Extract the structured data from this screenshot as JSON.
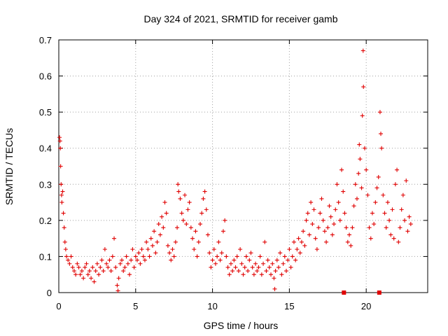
{
  "chart_data": {
    "type": "scatter",
    "title": "Day 324 of 2021, SRMTID for receiver gamb",
    "xlabel": "GPS time / hours",
    "ylabel": "SRMTID / TECUs",
    "xlim": [
      0,
      24
    ],
    "ylim": [
      0,
      0.7
    ],
    "xticks": [
      0,
      5,
      10,
      15,
      20
    ],
    "xtick_labels": [
      "0",
      "5",
      "10",
      "15",
      "20"
    ],
    "yticks": [
      0,
      0.1,
      0.2,
      0.3,
      0.4,
      0.5,
      0.6,
      0.7
    ],
    "ytick_labels": [
      "0",
      "0.1",
      "0.2",
      "0.3",
      "0.4",
      "0.5",
      "0.6",
      "0.7"
    ],
    "grid": true,
    "marker": "+",
    "color": "#e00000",
    "series": [
      {
        "name": "SRMTID",
        "points": [
          [
            0.05,
            0.43
          ],
          [
            0.08,
            0.42
          ],
          [
            0.1,
            0.4
          ],
          [
            0.12,
            0.35
          ],
          [
            0.15,
            0.3
          ],
          [
            0.18,
            0.27
          ],
          [
            0.2,
            0.25
          ],
          [
            0.25,
            0.28
          ],
          [
            0.3,
            0.22
          ],
          [
            0.35,
            0.18
          ],
          [
            0.4,
            0.14
          ],
          [
            0.45,
            0.12
          ],
          [
            0.5,
            0.1
          ],
          [
            0.6,
            0.09
          ],
          [
            0.7,
            0.08
          ],
          [
            0.8,
            0.1
          ],
          [
            0.9,
            0.07
          ],
          [
            1.0,
            0.06
          ],
          [
            1.1,
            0.05
          ],
          [
            1.2,
            0.08
          ],
          [
            1.3,
            0.07
          ],
          [
            1.4,
            0.05
          ],
          [
            1.5,
            0.06
          ],
          [
            1.6,
            0.04
          ],
          [
            1.7,
            0.07
          ],
          [
            1.8,
            0.08
          ],
          [
            1.9,
            0.05
          ],
          [
            2.0,
            0.06
          ],
          [
            2.1,
            0.04
          ],
          [
            2.2,
            0.07
          ],
          [
            2.3,
            0.03
          ],
          [
            2.4,
            0.06
          ],
          [
            2.5,
            0.08
          ],
          [
            2.6,
            0.05
          ],
          [
            2.7,
            0.07
          ],
          [
            2.8,
            0.09
          ],
          [
            2.9,
            0.06
          ],
          [
            3.0,
            0.12
          ],
          [
            3.1,
            0.08
          ],
          [
            3.2,
            0.07
          ],
          [
            3.3,
            0.09
          ],
          [
            3.4,
            0.06
          ],
          [
            3.5,
            0.1
          ],
          [
            3.6,
            0.15
          ],
          [
            3.7,
            0.07
          ],
          [
            3.8,
            0.02
          ],
          [
            3.85,
            0.005
          ],
          [
            3.9,
            0.04
          ],
          [
            4.0,
            0.08
          ],
          [
            4.1,
            0.09
          ],
          [
            4.2,
            0.06
          ],
          [
            4.3,
            0.07
          ],
          [
            4.4,
            0.1
          ],
          [
            4.5,
            0.08
          ],
          [
            4.6,
            0.05
          ],
          [
            4.7,
            0.09
          ],
          [
            4.8,
            0.12
          ],
          [
            4.9,
            0.07
          ],
          [
            5.0,
            0.1
          ],
          [
            5.1,
            0.09
          ],
          [
            5.2,
            0.11
          ],
          [
            5.3,
            0.08
          ],
          [
            5.4,
            0.12
          ],
          [
            5.5,
            0.1
          ],
          [
            5.6,
            0.09
          ],
          [
            5.7,
            0.14
          ],
          [
            5.8,
            0.12
          ],
          [
            5.9,
            0.1
          ],
          [
            6.0,
            0.15
          ],
          [
            6.1,
            0.13
          ],
          [
            6.2,
            0.17
          ],
          [
            6.3,
            0.11
          ],
          [
            6.4,
            0.14
          ],
          [
            6.5,
            0.19
          ],
          [
            6.6,
            0.16
          ],
          [
            6.7,
            0.21
          ],
          [
            6.8,
            0.18
          ],
          [
            6.9,
            0.25
          ],
          [
            7.0,
            0.22
          ],
          [
            7.1,
            0.13
          ],
          [
            7.2,
            0.11
          ],
          [
            7.3,
            0.09
          ],
          [
            7.4,
            0.12
          ],
          [
            7.5,
            0.1
          ],
          [
            7.6,
            0.14
          ],
          [
            7.7,
            0.18
          ],
          [
            7.75,
            0.3
          ],
          [
            7.8,
            0.28
          ],
          [
            7.9,
            0.26
          ],
          [
            8.0,
            0.22
          ],
          [
            8.1,
            0.2
          ],
          [
            8.2,
            0.27
          ],
          [
            8.3,
            0.19
          ],
          [
            8.4,
            0.23
          ],
          [
            8.5,
            0.25
          ],
          [
            8.6,
            0.18
          ],
          [
            8.7,
            0.15
          ],
          [
            8.8,
            0.12
          ],
          [
            8.9,
            0.17
          ],
          [
            9.0,
            0.1
          ],
          [
            9.1,
            0.14
          ],
          [
            9.2,
            0.19
          ],
          [
            9.3,
            0.22
          ],
          [
            9.4,
            0.26
          ],
          [
            9.5,
            0.28
          ],
          [
            9.6,
            0.23
          ],
          [
            9.7,
            0.16
          ],
          [
            9.8,
            0.11
          ],
          [
            9.9,
            0.07
          ],
          [
            10.0,
            0.09
          ],
          [
            10.1,
            0.12
          ],
          [
            10.2,
            0.08
          ],
          [
            10.3,
            0.1
          ],
          [
            10.4,
            0.14
          ],
          [
            10.5,
            0.09
          ],
          [
            10.6,
            0.11
          ],
          [
            10.7,
            0.17
          ],
          [
            10.8,
            0.2
          ],
          [
            10.9,
            0.1
          ],
          [
            11.0,
            0.07
          ],
          [
            11.1,
            0.05
          ],
          [
            11.2,
            0.08
          ],
          [
            11.3,
            0.06
          ],
          [
            11.4,
            0.09
          ],
          [
            11.5,
            0.07
          ],
          [
            11.6,
            0.1
          ],
          [
            11.7,
            0.06
          ],
          [
            11.8,
            0.12
          ],
          [
            11.9,
            0.08
          ],
          [
            12.0,
            0.05
          ],
          [
            12.1,
            0.07
          ],
          [
            12.2,
            0.1
          ],
          [
            12.3,
            0.06
          ],
          [
            12.4,
            0.09
          ],
          [
            12.5,
            0.11
          ],
          [
            12.6,
            0.07
          ],
          [
            12.7,
            0.05
          ],
          [
            12.8,
            0.08
          ],
          [
            12.9,
            0.06
          ],
          [
            13.0,
            0.07
          ],
          [
            13.1,
            0.1
          ],
          [
            13.2,
            0.05
          ],
          [
            13.3,
            0.08
          ],
          [
            13.4,
            0.14
          ],
          [
            13.5,
            0.06
          ],
          [
            13.6,
            0.09
          ],
          [
            13.7,
            0.07
          ],
          [
            13.8,
            0.05
          ],
          [
            13.9,
            0.08
          ],
          [
            14.0,
            0.04
          ],
          [
            14.05,
            0.01
          ],
          [
            14.1,
            0.06
          ],
          [
            14.2,
            0.09
          ],
          [
            14.3,
            0.07
          ],
          [
            14.4,
            0.11
          ],
          [
            14.5,
            0.05
          ],
          [
            14.6,
            0.08
          ],
          [
            14.7,
            0.1
          ],
          [
            14.8,
            0.06
          ],
          [
            14.9,
            0.09
          ],
          [
            15.0,
            0.12
          ],
          [
            15.1,
            0.07
          ],
          [
            15.2,
            0.1
          ],
          [
            15.3,
            0.14
          ],
          [
            15.4,
            0.09
          ],
          [
            15.5,
            0.12
          ],
          [
            15.6,
            0.15
          ],
          [
            15.7,
            0.11
          ],
          [
            15.8,
            0.14
          ],
          [
            15.9,
            0.17
          ],
          [
            16.0,
            0.13
          ],
          [
            16.1,
            0.2
          ],
          [
            16.2,
            0.22
          ],
          [
            16.3,
            0.16
          ],
          [
            16.4,
            0.25
          ],
          [
            16.5,
            0.19
          ],
          [
            16.6,
            0.23
          ],
          [
            16.7,
            0.15
          ],
          [
            16.8,
            0.12
          ],
          [
            16.9,
            0.18
          ],
          [
            17.0,
            0.22
          ],
          [
            17.1,
            0.26
          ],
          [
            17.2,
            0.2
          ],
          [
            17.3,
            0.17
          ],
          [
            17.4,
            0.14
          ],
          [
            17.5,
            0.18
          ],
          [
            17.6,
            0.24
          ],
          [
            17.7,
            0.21
          ],
          [
            17.8,
            0.16
          ],
          [
            17.9,
            0.19
          ],
          [
            18.0,
            0.23
          ],
          [
            18.1,
            0.3
          ],
          [
            18.2,
            0.25
          ],
          [
            18.3,
            0.2
          ],
          [
            18.4,
            0.34
          ],
          [
            18.5,
            0.28
          ],
          [
            18.6,
            0.22
          ],
          [
            18.7,
            0.18
          ],
          [
            18.8,
            0.14
          ],
          [
            18.9,
            0.16
          ],
          [
            19.0,
            0.13
          ],
          [
            19.1,
            0.18
          ],
          [
            19.2,
            0.24
          ],
          [
            19.3,
            0.3
          ],
          [
            19.4,
            0.26
          ],
          [
            19.5,
            0.33
          ],
          [
            19.55,
            0.41
          ],
          [
            19.6,
            0.37
          ],
          [
            19.7,
            0.29
          ],
          [
            19.75,
            0.49
          ],
          [
            19.8,
            0.67
          ],
          [
            19.82,
            0.57
          ],
          [
            19.9,
            0.4
          ],
          [
            20.0,
            0.34
          ],
          [
            20.1,
            0.27
          ],
          [
            20.2,
            0.18
          ],
          [
            20.3,
            0.15
          ],
          [
            20.4,
            0.22
          ],
          [
            20.5,
            0.19
          ],
          [
            20.6,
            0.25
          ],
          [
            20.7,
            0.29
          ],
          [
            20.8,
            0.32
          ],
          [
            20.9,
            0.5
          ],
          [
            20.95,
            0.44
          ],
          [
            21.0,
            0.4
          ],
          [
            21.1,
            0.27
          ],
          [
            21.2,
            0.22
          ],
          [
            21.3,
            0.18
          ],
          [
            21.4,
            0.25
          ],
          [
            21.5,
            0.2
          ],
          [
            21.6,
            0.16
          ],
          [
            21.7,
            0.23
          ],
          [
            21.8,
            0.15
          ],
          [
            21.9,
            0.3
          ],
          [
            22.0,
            0.34
          ],
          [
            22.1,
            0.14
          ],
          [
            22.2,
            0.18
          ],
          [
            22.3,
            0.23
          ],
          [
            22.4,
            0.27
          ],
          [
            22.5,
            0.2
          ],
          [
            22.6,
            0.31
          ],
          [
            22.7,
            0.17
          ],
          [
            22.8,
            0.21
          ],
          [
            22.9,
            0.19
          ]
        ]
      }
    ],
    "square_markers": [
      [
        18.55,
        0.0
      ],
      [
        20.85,
        0.0
      ]
    ]
  }
}
